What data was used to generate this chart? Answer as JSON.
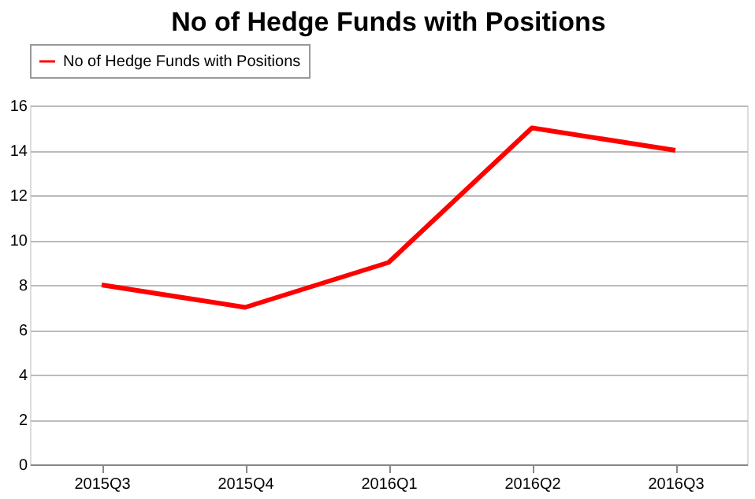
{
  "chart_data": {
    "type": "line",
    "title": "No of Hedge Funds with Positions",
    "categories": [
      "2015Q3",
      "2015Q4",
      "2016Q1",
      "2016Q2",
      "2016Q3"
    ],
    "series": [
      {
        "name": "No of Hedge Funds with Positions",
        "color": "#ff0000",
        "values": [
          8,
          7,
          9,
          15,
          14
        ]
      }
    ],
    "ylim": [
      0,
      16
    ],
    "yticks": [
      0,
      2,
      4,
      6,
      8,
      10,
      12,
      14,
      16
    ],
    "grid": "y",
    "legend": "top",
    "marker": "none",
    "line_style": "solid"
  }
}
